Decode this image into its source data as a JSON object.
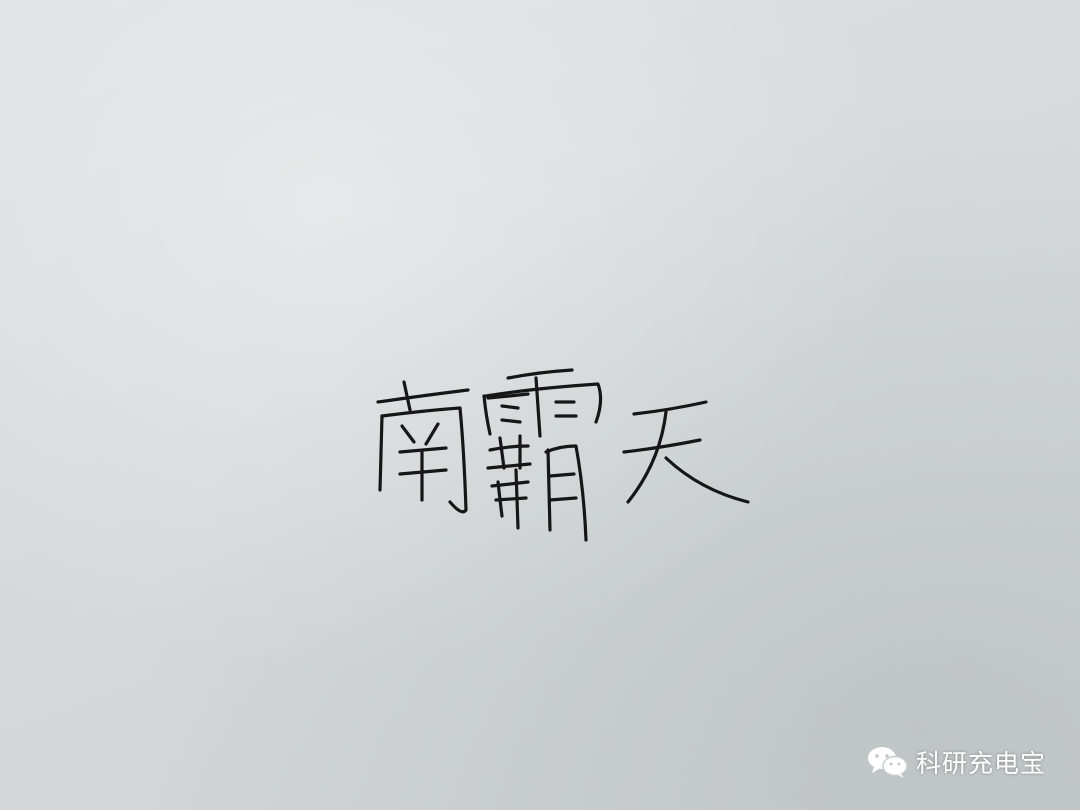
{
  "handwritten_text": "南霸天",
  "watermark": {
    "icon": "wechat-icon",
    "text": "科研充电宝"
  },
  "colors": {
    "paper": "#d6dadb",
    "ink": "#161616",
    "watermark": "#ffffff"
  }
}
